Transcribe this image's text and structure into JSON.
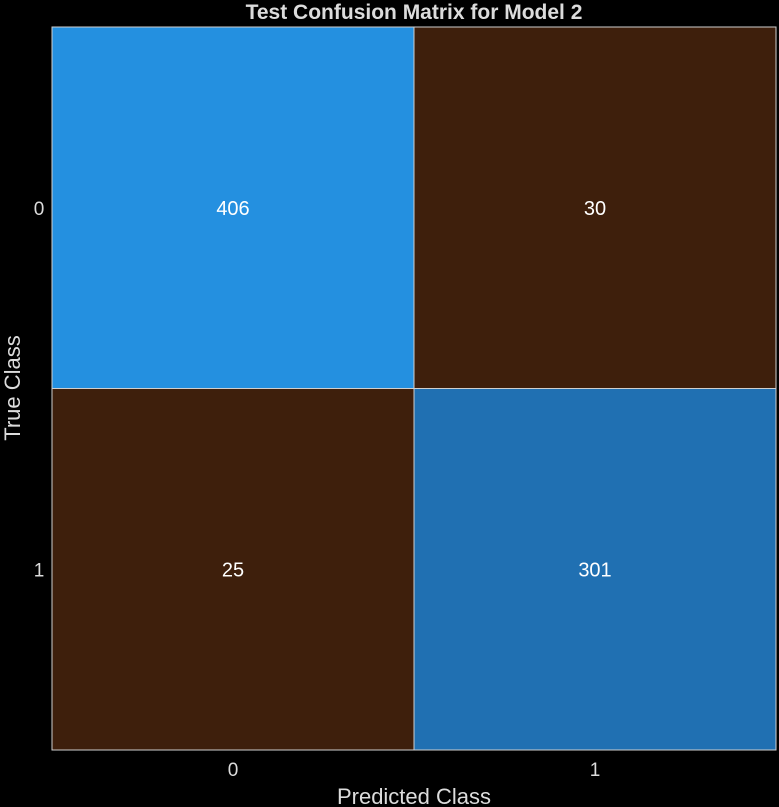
{
  "chart_data": {
    "type": "heatmap",
    "title": "Test Confusion Matrix for Model 2",
    "xlabel": "Predicted Class",
    "ylabel": "True Class",
    "x_categories": [
      "0",
      "1"
    ],
    "y_categories": [
      "0",
      "1"
    ],
    "values": [
      [
        406,
        30
      ],
      [
        25,
        301
      ]
    ],
    "cell_colors": [
      [
        "#2490e0",
        "#3e1f0c"
      ],
      [
        "#3e1f0c",
        "#2070b2"
      ]
    ],
    "grid": true,
    "legend": "none"
  }
}
